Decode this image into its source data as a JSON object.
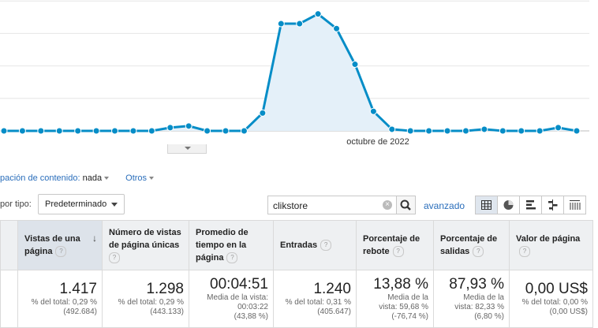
{
  "chart_data": {
    "type": "area",
    "title": "",
    "xlabel": "",
    "ylabel": "",
    "x_tick_label": "octubre de 2022",
    "values": [
      0,
      0,
      0,
      0,
      0,
      0,
      0,
      0,
      0,
      2,
      3,
      0,
      0,
      0,
      11,
      66,
      66,
      72,
      63,
      41,
      12,
      1,
      0,
      0,
      0,
      0,
      1,
      0,
      0,
      0,
      2,
      0
    ],
    "ylim": [
      0,
      100
    ],
    "grid": true,
    "colors": {
      "line": "#058dc7",
      "fill": "#e4f0f9"
    }
  },
  "toolbar": {
    "grouping_label": "pación de contenido:",
    "grouping_value": "nada",
    "others": "Otros",
    "filter_label": "por tipo:",
    "filter_select": "Predeterminado",
    "search_value": "clikstore",
    "advanced": "avanzado",
    "help_mark": "?"
  },
  "icons": [
    "clear-icon",
    "search-icon",
    "grid-view-icon",
    "pie-view-icon",
    "bar-view-icon",
    "comparison-view-icon",
    "pivot-view-icon",
    "sort-down-icon",
    "help-icon"
  ],
  "table": {
    "headers": [
      {
        "l1": "Vistas de una",
        "l2": "página"
      },
      {
        "l1": "Número de vistas",
        "l2": "de página únicas"
      },
      {
        "l1": "Promedio de",
        "l2": "tiempo en la",
        "l3": "página"
      },
      {
        "l1": "Entradas"
      },
      {
        "l1": "Porcentaje de",
        "l2": "rebote"
      },
      {
        "l1": "Porcentaje de",
        "l2": "salidas"
      },
      {
        "l1": "Valor de página"
      }
    ],
    "totals": [
      {
        "value": "1.417",
        "s1": "% del total: 0,29 %",
        "s2": "(492.684)"
      },
      {
        "value": "1.298",
        "s1": "% del total: 0,29 %",
        "s2": "(443.133)"
      },
      {
        "value": "00:04:51",
        "s1": "Media de la vista:",
        "s2": "00:03:22",
        "s3": "(43,88 %)"
      },
      {
        "value": "1.240",
        "s1": "% del total: 0,31 %",
        "s2": "(405.647)"
      },
      {
        "value": "13,88 %",
        "s1": "Media de la",
        "s2": "vista: 59,68 %",
        "s3": "(-76,74 %)"
      },
      {
        "value": "87,93 %",
        "s1": "Media de la",
        "s2": "vista: 82,33 %",
        "s3": "(6,80 %)"
      },
      {
        "value": "0,00 US$",
        "s1": "% del total: 0,00 %",
        "s2": "(0,00 US$)"
      }
    ]
  }
}
